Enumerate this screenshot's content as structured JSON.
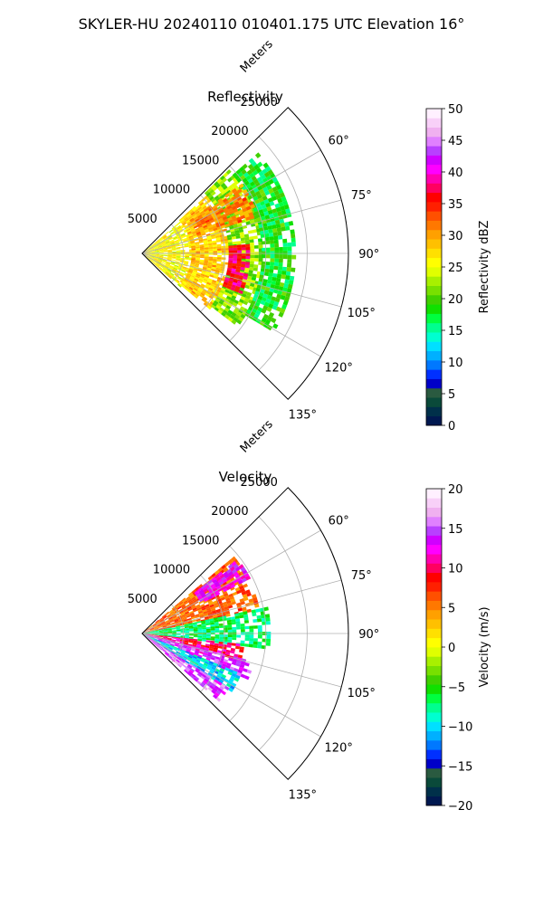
{
  "header": {
    "title": "SKYLER-HU  20240110  010401.175 UTC Elevation 16°"
  },
  "chart_data": [
    {
      "type": "polar-sector",
      "title": "Reflectivity",
      "radial_axis_label": "Meters",
      "radial_ticks": [
        5000,
        10000,
        15000,
        20000,
        25000
      ],
      "radial_tick_labels": [
        "5000",
        "10000",
        "15000",
        "20000",
        "25000"
      ],
      "angle_ticks_deg": [
        60,
        75,
        90,
        105,
        120,
        135
      ],
      "angle_tick_labels": [
        "60°",
        "75°",
        "90°",
        "105°",
        "120°",
        "135°"
      ],
      "sector_deg": [
        45,
        135
      ],
      "rlim": [
        0,
        25000
      ],
      "grid": true,
      "colorbar": {
        "label": "Reflectivity dBZ",
        "range": [
          0,
          50
        ],
        "ticks": [
          0,
          5,
          10,
          15,
          20,
          25,
          30,
          35,
          40,
          45,
          50
        ],
        "tick_labels": [
          "0",
          "5",
          "10",
          "15",
          "20",
          "25",
          "30",
          "35",
          "40",
          "45",
          "50"
        ],
        "colors": [
          "#001850",
          "#00304a",
          "#0a4a3a",
          "#2a5a40",
          "#0000c8",
          "#0030ff",
          "#0078ff",
          "#00b0ff",
          "#00e0ff",
          "#00ffd0",
          "#00ff90",
          "#00ff40",
          "#10e000",
          "#40d000",
          "#78e000",
          "#a8f000",
          "#e0ff00",
          "#ffff00",
          "#ffe000",
          "#ffc000",
          "#ffa000",
          "#ff7800",
          "#ff5000",
          "#ff2000",
          "#ff0000",
          "#ff0060",
          "#ff00b0",
          "#ff00ff",
          "#d000ff",
          "#b840ff",
          "#e080ff",
          "#f0b0f0",
          "#f8d0f8",
          "#fff0ff"
        ]
      },
      "echo_features": [
        {
          "r_range": [
            0,
            6000
          ],
          "az_range": [
            50,
            130
          ],
          "level": 26
        },
        {
          "r_range": [
            6000,
            10500
          ],
          "az_range": [
            48,
            128
          ],
          "level": 28
        },
        {
          "r_range": [
            10500,
            14500
          ],
          "az_range": [
            46,
            126
          ],
          "level": 22
        },
        {
          "r_range": [
            14500,
            18500
          ],
          "az_range": [
            49,
            120
          ],
          "level": 18
        },
        {
          "r_range": [
            7000,
            14500
          ],
          "az_range": [
            55,
            72
          ],
          "level": 31
        },
        {
          "r_range": [
            10500,
            13000
          ],
          "az_range": [
            85,
            112
          ],
          "level": 37
        }
      ]
    },
    {
      "type": "polar-sector",
      "title": "Velocity",
      "radial_axis_label": "Meters",
      "radial_ticks": [
        5000,
        10000,
        15000,
        20000,
        25000
      ],
      "radial_tick_labels": [
        "5000",
        "10000",
        "15000",
        "20000",
        "25000"
      ],
      "angle_ticks_deg": [
        60,
        75,
        90,
        105,
        120,
        135
      ],
      "angle_tick_labels": [
        "60°",
        "75°",
        "90°",
        "105°",
        "120°",
        "135°"
      ],
      "sector_deg": [
        45,
        135
      ],
      "rlim": [
        0,
        25000
      ],
      "grid": true,
      "colorbar": {
        "label": "Velocity (m/s)",
        "range": [
          -20,
          20
        ],
        "ticks": [
          -20,
          -15,
          -10,
          -5,
          0,
          5,
          10,
          15,
          20
        ],
        "tick_labels": [
          "−20",
          "−15",
          "−10",
          "−5",
          "0",
          "5",
          "10",
          "15",
          "20"
        ],
        "colors": [
          "#001850",
          "#00304a",
          "#0a4a3a",
          "#2a5a40",
          "#0000c8",
          "#0030ff",
          "#0078ff",
          "#00b0ff",
          "#00e0ff",
          "#00ffd0",
          "#00ff90",
          "#00ff40",
          "#10e000",
          "#40d000",
          "#78e000",
          "#a8f000",
          "#e0ff00",
          "#ffff00",
          "#ffe000",
          "#ffc000",
          "#ffa000",
          "#ff7800",
          "#ff5000",
          "#ff2000",
          "#ff0000",
          "#ff0060",
          "#ff00b0",
          "#ff00ff",
          "#d000ff",
          "#b840ff",
          "#e080ff",
          "#f0b0f0",
          "#f8d0f8",
          "#fff0ff"
        ]
      },
      "echo_features": [
        {
          "r_range": [
            0,
            14500
          ],
          "az_range": [
            50,
            78
          ],
          "level": 6
        },
        {
          "r_range": [
            8000,
            14500
          ],
          "az_range": [
            52,
            62
          ],
          "level": 13
        },
        {
          "r_range": [
            0,
            15500
          ],
          "az_range": [
            78,
            96
          ],
          "level": -7
        },
        {
          "r_range": [
            0,
            13000
          ],
          "az_range": [
            96,
            104
          ],
          "level": 10
        },
        {
          "r_range": [
            0,
            14000
          ],
          "az_range": [
            104,
            112
          ],
          "level": 14
        },
        {
          "r_range": [
            0,
            13000
          ],
          "az_range": [
            112,
            122
          ],
          "level": -10
        },
        {
          "r_range": [
            0,
            12000
          ],
          "az_range": [
            122,
            130
          ],
          "level": 15
        }
      ]
    }
  ]
}
